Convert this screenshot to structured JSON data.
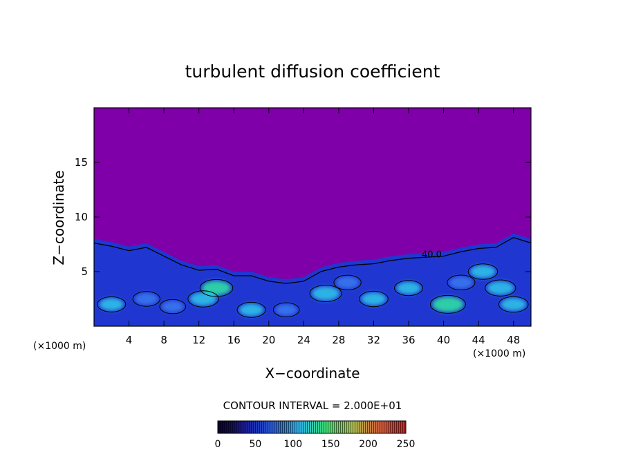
{
  "chart_data": {
    "type": "heatmap",
    "title": "turbulent diffusion coefficient",
    "xlabel": "X−coordinate",
    "ylabel": "Z−coordinate",
    "x_unit_label": "(×1000 m)",
    "y_unit_label": "(×1000 m)",
    "xlim": [
      0,
      50
    ],
    "ylim": [
      0,
      20
    ],
    "x_ticks": [
      4,
      8,
      12,
      16,
      20,
      24,
      28,
      32,
      36,
      40,
      44,
      48
    ],
    "y_ticks": [
      5,
      10,
      15
    ],
    "contour_interval_label": "CONTOUR INTERVAL = 2.000E+01",
    "contour_interval": 20,
    "contour_label": "40.0",
    "contour_label_x": 37.5,
    "contour_label_z": 6.3,
    "background_value": 0,
    "colorbar": {
      "min": 0,
      "max": 250,
      "ticks": [
        0,
        50,
        100,
        150,
        200,
        250
      ]
    },
    "turbulent_layer_top": [
      [
        0,
        8.0
      ],
      [
        2,
        7.7
      ],
      [
        4,
        7.3
      ],
      [
        6,
        7.6
      ],
      [
        8,
        6.8
      ],
      [
        10,
        6.0
      ],
      [
        12,
        5.5
      ],
      [
        14,
        5.6
      ],
      [
        16,
        5.0
      ],
      [
        18,
        5.0
      ],
      [
        20,
        4.5
      ],
      [
        22,
        4.3
      ],
      [
        24,
        4.5
      ],
      [
        26,
        5.4
      ],
      [
        28,
        5.8
      ],
      [
        30,
        6.0
      ],
      [
        32,
        6.1
      ],
      [
        34,
        6.4
      ],
      [
        36,
        6.6
      ],
      [
        38,
        6.7
      ],
      [
        40,
        6.8
      ],
      [
        42,
        7.2
      ],
      [
        44,
        7.5
      ],
      [
        46,
        7.6
      ],
      [
        48,
        8.5
      ],
      [
        50,
        8.0
      ]
    ],
    "hot_spots": [
      {
        "x": 40.5,
        "z": 2.0,
        "value": 150
      },
      {
        "x": 14.0,
        "z": 3.5,
        "value": 130
      },
      {
        "x": 26.5,
        "z": 3.0,
        "value": 120
      },
      {
        "x": 12.5,
        "z": 2.5,
        "value": 110
      },
      {
        "x": 44.5,
        "z": 5.0,
        "value": 100
      },
      {
        "x": 18.0,
        "z": 1.5,
        "value": 90
      },
      {
        "x": 32.0,
        "z": 2.5,
        "value": 95
      },
      {
        "x": 46.5,
        "z": 3.5,
        "value": 110
      },
      {
        "x": 6.0,
        "z": 2.5,
        "value": 80
      },
      {
        "x": 36.0,
        "z": 3.5,
        "value": 90
      },
      {
        "x": 2.0,
        "z": 2.0,
        "value": 90
      },
      {
        "x": 22.0,
        "z": 1.5,
        "value": 70
      },
      {
        "x": 29.0,
        "z": 4.0,
        "value": 80
      },
      {
        "x": 42.0,
        "z": 4.0,
        "value": 85
      },
      {
        "x": 9.0,
        "z": 1.8,
        "value": 70
      },
      {
        "x": 48.0,
        "z": 2.0,
        "value": 100
      }
    ]
  },
  "colors": {
    "background": "#7f00a8",
    "palette": [
      "#1a0a5a",
      "#1a30c8",
      "#3a7af0",
      "#30c8e8",
      "#30e8a0",
      "#9ae850",
      "#e8b040",
      "#e03020"
    ]
  }
}
